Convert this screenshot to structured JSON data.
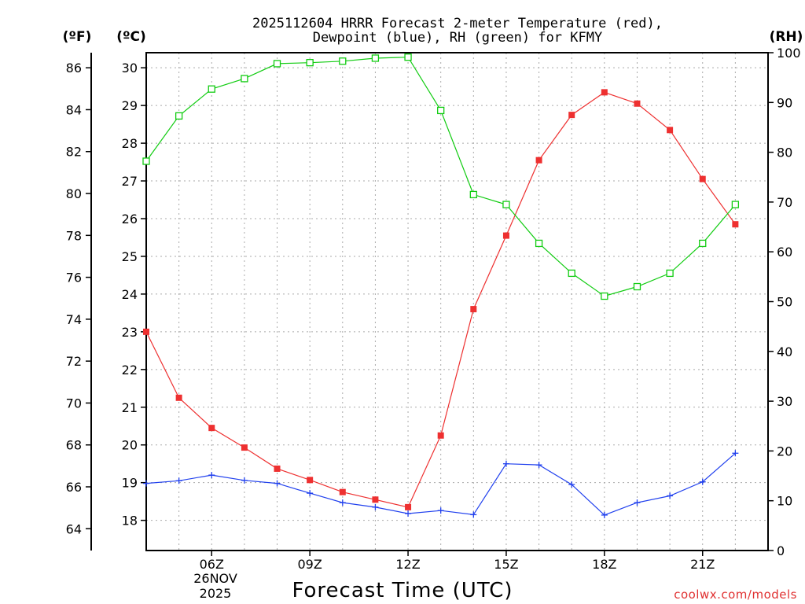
{
  "chart_data": {
    "type": "line",
    "title_line1": "2025112604 HRRR Forecast 2-meter Temperature (red),",
    "title_line2": "Dewpoint (blue), RH (green) for KFMY",
    "xlabel": "Forecast Time (UTC)",
    "credit": "coolwx.com/models",
    "units": {
      "fahrenheit": "(ºF)",
      "celsius": "(ºC)",
      "rh": "(RH)"
    },
    "x": [
      4,
      5,
      6,
      7,
      8,
      9,
      10,
      11,
      12,
      13,
      14,
      15,
      16,
      17,
      18,
      19,
      20,
      21,
      22
    ],
    "xlim": [
      4,
      23
    ],
    "x_ticks": [
      {
        "x": 6,
        "label": "06Z"
      },
      {
        "x": 9,
        "label": "09Z"
      },
      {
        "x": 12,
        "label": "12Z"
      },
      {
        "x": 15,
        "label": "15Z"
      },
      {
        "x": 18,
        "label": "18Z"
      },
      {
        "x": 21,
        "label": "21Z"
      }
    ],
    "date_label": {
      "day": "26NOV",
      "year": "2025"
    },
    "celsius_axis": {
      "range": [
        17.2,
        30.4
      ],
      "ticks": [
        "18",
        "19",
        "20",
        "21",
        "22",
        "23",
        "24",
        "25",
        "26",
        "27",
        "28",
        "29",
        "30"
      ]
    },
    "fahrenheit_axis": {
      "ticks": [
        "64",
        "66",
        "68",
        "70",
        "72",
        "74",
        "76",
        "78",
        "80",
        "82",
        "84",
        "86"
      ]
    },
    "rh_axis": {
      "range": [
        0,
        100
      ],
      "ticks": [
        "0",
        "10",
        "20",
        "30",
        "40",
        "50",
        "60",
        "70",
        "80",
        "90",
        "100"
      ]
    },
    "series": [
      {
        "name": "Temperature",
        "color": "#ee3030",
        "marker": "filled-square",
        "axis": "celsius",
        "values": [
          23.0,
          21.25,
          20.45,
          19.93,
          19.37,
          19.07,
          18.75,
          18.55,
          18.35,
          20.25,
          23.6,
          25.55,
          27.55,
          28.75,
          29.35,
          29.05,
          28.35,
          27.05,
          25.85
        ]
      },
      {
        "name": "Dewpoint",
        "color": "#2040ee",
        "marker": "plus",
        "axis": "celsius",
        "values": [
          18.98,
          19.05,
          19.2,
          19.06,
          18.98,
          18.72,
          18.47,
          18.35,
          18.18,
          18.26,
          18.15,
          19.5,
          19.47,
          18.95,
          18.14,
          18.47,
          18.65,
          19.02,
          19.78
        ]
      },
      {
        "name": "RH",
        "color": "#11cc11",
        "marker": "open-square",
        "axis": "rh",
        "values": [
          78.2,
          87.3,
          92.7,
          94.8,
          97.8,
          98.0,
          98.3,
          98.9,
          99.1,
          88.4,
          71.5,
          69.5,
          61.7,
          55.7,
          51.1,
          53.0,
          55.7,
          61.7,
          69.5
        ]
      }
    ]
  }
}
